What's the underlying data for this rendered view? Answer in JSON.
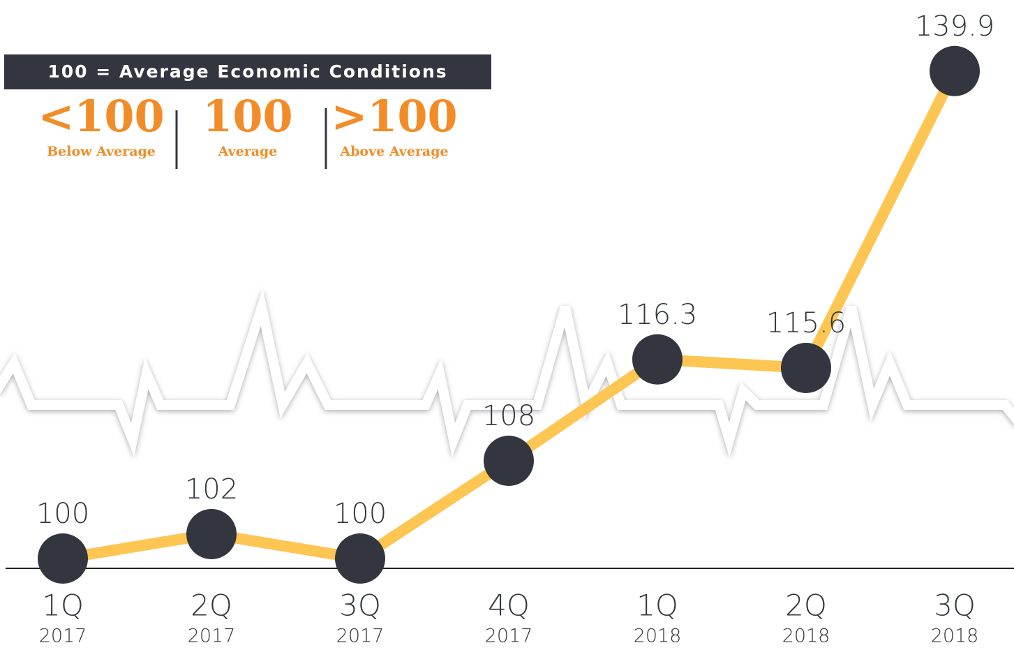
{
  "chart_data": {
    "type": "line",
    "categories": [
      "1Q",
      "2Q",
      "3Q",
      "4Q",
      "1Q",
      "2Q",
      "3Q"
    ],
    "category_years": [
      "2017",
      "2017",
      "2017",
      "2017",
      "2018",
      "2018",
      "2018"
    ],
    "series": [
      {
        "color": "#fdc652",
        "marker_color": "#33363f",
        "values": [
          100,
          102,
          100,
          108,
          116.3,
          115.6,
          139.9
        ]
      }
    ],
    "ylim": [
      100,
      140
    ],
    "key": {
      "title": "100 = Average Economic Conditions",
      "items": [
        {
          "value": "<100",
          "label": "Below Average"
        },
        {
          "value": "100",
          "label": "Average"
        },
        {
          "value": ">100",
          "label": "Above Average"
        }
      ]
    }
  }
}
